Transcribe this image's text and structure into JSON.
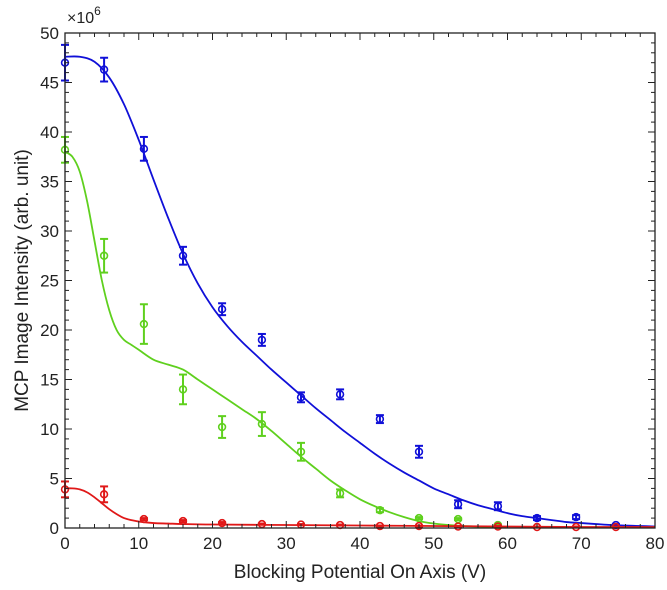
{
  "chart_data": {
    "type": "scatter",
    "xlabel": "Blocking Potential On Axis (V)",
    "ylabel": "MCP Image Intensity (arb. unit)",
    "y_multiplier": "×10",
    "y_multiplier_exponent": "6",
    "xlim": [
      0,
      80
    ],
    "ylim": [
      0,
      50
    ],
    "x_ticks": [
      0,
      10,
      20,
      30,
      40,
      50,
      60,
      70,
      80
    ],
    "y_ticks": [
      0,
      5,
      10,
      15,
      20,
      25,
      30,
      35,
      40,
      45,
      50
    ],
    "grid": false,
    "series": [
      {
        "color": "#1010d8",
        "points": [
          {
            "x": 0,
            "y": 47.0,
            "err": 1.8
          },
          {
            "x": 5.3,
            "y": 46.3,
            "err": 1.2
          },
          {
            "x": 10.7,
            "y": 38.3,
            "err": 1.2
          },
          {
            "x": 16.0,
            "y": 27.5,
            "err": 0.9
          },
          {
            "x": 21.3,
            "y": 22.1,
            "err": 0.6
          },
          {
            "x": 26.7,
            "y": 19.0,
            "err": 0.6
          },
          {
            "x": 32.0,
            "y": 13.2,
            "err": 0.5
          },
          {
            "x": 37.3,
            "y": 13.5,
            "err": 0.5
          },
          {
            "x": 42.7,
            "y": 11.0,
            "err": 0.4
          },
          {
            "x": 48.0,
            "y": 7.7,
            "err": 0.6
          },
          {
            "x": 53.3,
            "y": 2.4,
            "err": 0.4
          },
          {
            "x": 58.7,
            "y": 2.2,
            "err": 0.4
          },
          {
            "x": 64.0,
            "y": 1.0,
            "err": 0.2
          },
          {
            "x": 69.3,
            "y": 1.1,
            "err": 0.2
          },
          {
            "x": 74.7,
            "y": 0.3,
            "err": 0.1
          }
        ],
        "fit": {
          "x": [
            0,
            2,
            4,
            6,
            8,
            10,
            12,
            14,
            16,
            18,
            20,
            22,
            24,
            26,
            28,
            30,
            32,
            34,
            36,
            38,
            40,
            42,
            44,
            46,
            48,
            50,
            52,
            54,
            56,
            58,
            60,
            62,
            64,
            66,
            68,
            70,
            72,
            74,
            76,
            78,
            80
          ],
          "y": [
            47.6,
            47.6,
            47.1,
            45.5,
            42.8,
            39.2,
            35.2,
            31.3,
            27.7,
            24.7,
            22.3,
            20.4,
            18.8,
            17.4,
            16.0,
            14.7,
            13.4,
            12.1,
            10.9,
            9.7,
            8.6,
            7.5,
            6.5,
            5.6,
            4.8,
            4.0,
            3.4,
            2.8,
            2.3,
            1.9,
            1.5,
            1.2,
            1.0,
            0.8,
            0.6,
            0.5,
            0.4,
            0.3,
            0.25,
            0.2,
            0.15
          ]
        }
      },
      {
        "color": "#5fd01e",
        "points": [
          {
            "x": 0,
            "y": 38.2,
            "err": 1.3
          },
          {
            "x": 5.3,
            "y": 27.5,
            "err": 1.7
          },
          {
            "x": 10.7,
            "y": 20.6,
            "err": 2.0
          },
          {
            "x": 16.0,
            "y": 14.0,
            "err": 1.5
          },
          {
            "x": 21.3,
            "y": 10.2,
            "err": 1.1
          },
          {
            "x": 26.7,
            "y": 10.5,
            "err": 1.2
          },
          {
            "x": 32.0,
            "y": 7.7,
            "err": 0.9
          },
          {
            "x": 37.3,
            "y": 3.5,
            "err": 0.4
          },
          {
            "x": 42.7,
            "y": 1.8,
            "err": 0.2
          },
          {
            "x": 48.0,
            "y": 1.0,
            "err": 0.1
          },
          {
            "x": 53.3,
            "y": 0.9,
            "err": 0.1
          },
          {
            "x": 58.7,
            "y": 0.3,
            "err": 0.05
          }
        ],
        "fit": {
          "x": [
            0,
            1,
            2,
            3,
            4,
            5,
            6,
            7,
            8,
            9,
            10,
            12,
            14,
            16,
            18,
            20,
            22,
            24,
            26,
            28,
            30,
            32,
            34,
            36,
            38,
            40,
            42,
            44,
            46,
            48,
            50,
            52,
            54,
            56,
            58,
            60
          ],
          "y": [
            38.0,
            37.5,
            36.0,
            33.0,
            29.0,
            25.0,
            22.0,
            20.0,
            19.0,
            18.5,
            18.0,
            17.0,
            16.5,
            16.0,
            15.0,
            14.0,
            13.0,
            12.0,
            11.0,
            9.8,
            8.5,
            7.2,
            6.0,
            4.8,
            3.8,
            2.9,
            2.2,
            1.6,
            1.1,
            0.7,
            0.45,
            0.3,
            0.2,
            0.15,
            0.1,
            0.05
          ]
        }
      },
      {
        "color": "#e01818",
        "points": [
          {
            "x": 0,
            "y": 3.9,
            "err": 0.8
          },
          {
            "x": 5.3,
            "y": 3.4,
            "err": 0.8
          },
          {
            "x": 10.7,
            "y": 0.9,
            "err": 0.1
          },
          {
            "x": 16.0,
            "y": 0.7,
            "err": 0.1
          },
          {
            "x": 21.3,
            "y": 0.5,
            "err": 0.1
          },
          {
            "x": 26.7,
            "y": 0.4,
            "err": 0.05
          },
          {
            "x": 32.0,
            "y": 0.35,
            "err": 0.05
          },
          {
            "x": 37.3,
            "y": 0.3,
            "err": 0.05
          },
          {
            "x": 42.7,
            "y": 0.2,
            "err": 0.05
          },
          {
            "x": 48.0,
            "y": 0.2,
            "err": 0.05
          },
          {
            "x": 53.3,
            "y": 0.15,
            "err": 0.05
          },
          {
            "x": 58.7,
            "y": 0.15,
            "err": 0.05
          },
          {
            "x": 64.0,
            "y": 0.1,
            "err": 0.05
          },
          {
            "x": 69.3,
            "y": 0.1,
            "err": 0.05
          },
          {
            "x": 74.7,
            "y": 0.1,
            "err": 0.05
          }
        ],
        "fit": {
          "x": [
            0,
            1,
            2,
            3,
            4,
            5,
            6,
            7,
            8,
            9,
            10,
            12,
            14,
            16,
            20,
            30,
            40,
            50,
            60,
            70,
            80
          ],
          "y": [
            4.0,
            4.0,
            3.9,
            3.6,
            3.1,
            2.5,
            1.9,
            1.4,
            1.0,
            0.8,
            0.65,
            0.5,
            0.45,
            0.4,
            0.35,
            0.3,
            0.25,
            0.2,
            0.15,
            0.1,
            0.1
          ]
        }
      }
    ]
  }
}
